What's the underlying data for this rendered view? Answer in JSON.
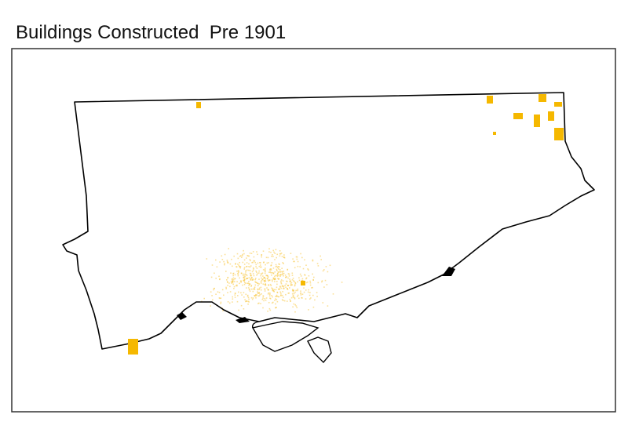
{
  "title": "Buildings Constructed  Pre 1901"
}
